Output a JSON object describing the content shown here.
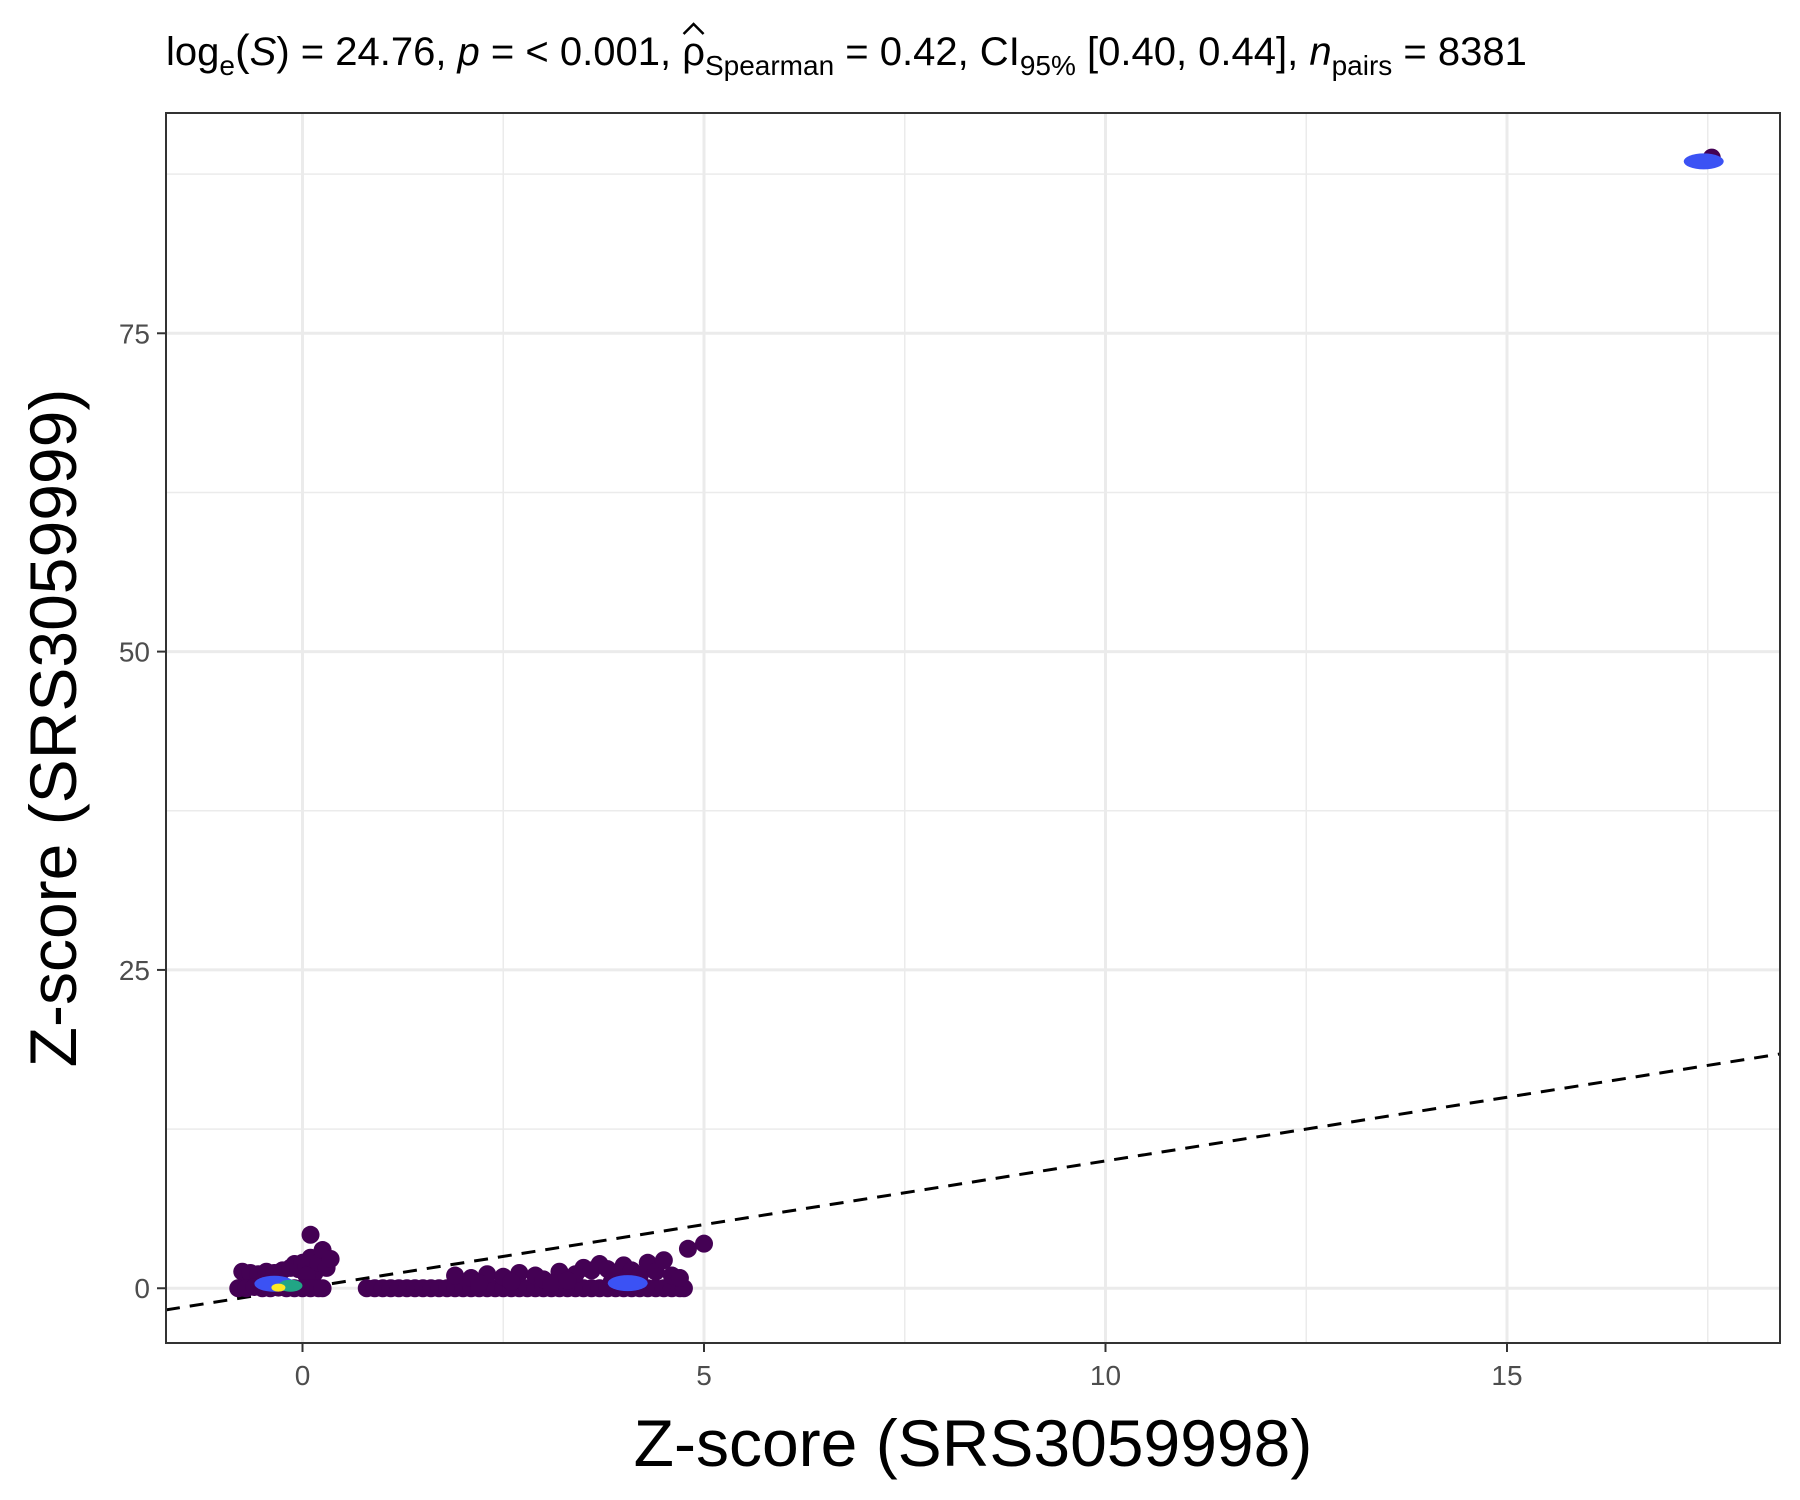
{
  "chart_data": {
    "type": "scatter",
    "subtitle": {
      "loge_S": "log",
      "loge_S_sub": "e",
      "S_symbol": "S",
      "S_value": ") = 24.76, ",
      "p_symbol": "p",
      "p_value": " = < 0.001, ",
      "rho_symbol": "ρ",
      "rho_sub": "Spearman",
      "rho_value": " = 0.42, CI",
      "ci_sub": "95%",
      "ci_value": " [0.40, 0.44], ",
      "n_symbol": "n",
      "n_sub": "pairs",
      "n_value": " = 8381"
    },
    "xlabel": "Z-score (SRS3059998)",
    "ylabel": "Z-score (SRS3059999)",
    "xlim": [
      -1.7,
      18.4
    ],
    "ylim": [
      -4.3,
      92.3
    ],
    "x_ticks": [
      0,
      5,
      10,
      15
    ],
    "x_tick_labels": [
      "0",
      "5",
      "10",
      "15"
    ],
    "y_ticks": [
      0,
      25,
      50,
      75
    ],
    "y_tick_labels": [
      "0",
      "25",
      "50",
      "75"
    ],
    "grid": true,
    "reference_line": {
      "style": "dashed",
      "slope": 1,
      "intercept": 0
    },
    "colors": {
      "low_density": "#440154",
      "mid_density": "#3b52f4",
      "high_density": "#21a585",
      "peak_density": "#fde725",
      "line": "#000000"
    },
    "points": [
      [
        17.55,
        88.8
      ],
      [
        -0.75,
        1.3
      ],
      [
        -0.65,
        1.2
      ],
      [
        -0.55,
        1.1
      ],
      [
        -0.45,
        1.3
      ],
      [
        -0.35,
        1.2
      ],
      [
        -0.25,
        1.4
      ],
      [
        -0.15,
        1.6
      ],
      [
        -0.1,
        1.9
      ],
      [
        -0.05,
        1.5
      ],
      [
        0.0,
        2.0
      ],
      [
        0.05,
        1.7
      ],
      [
        0.1,
        4.2
      ],
      [
        0.1,
        2.4
      ],
      [
        0.15,
        1.2
      ],
      [
        0.2,
        2.0
      ],
      [
        0.25,
        3.0
      ],
      [
        0.3,
        1.6
      ],
      [
        0.35,
        2.3
      ],
      [
        0.05,
        1.0
      ],
      [
        -0.8,
        0.0
      ],
      [
        -0.7,
        0.0
      ],
      [
        -0.6,
        0.1
      ],
      [
        -0.5,
        0.0
      ],
      [
        -0.4,
        0.0
      ],
      [
        -0.3,
        0.05
      ],
      [
        -0.2,
        0.0
      ],
      [
        -0.1,
        0.0
      ],
      [
        0.0,
        0.0
      ],
      [
        0.1,
        0.0
      ],
      [
        0.2,
        0.0
      ],
      [
        0.25,
        0.0
      ],
      [
        0.8,
        0.0
      ],
      [
        0.9,
        0.0
      ],
      [
        1.0,
        0.0
      ],
      [
        1.1,
        0.0
      ],
      [
        1.2,
        0.0
      ],
      [
        1.3,
        0.0
      ],
      [
        1.4,
        0.0
      ],
      [
        1.5,
        0.0
      ],
      [
        1.6,
        0.0
      ],
      [
        1.7,
        0.0
      ],
      [
        1.8,
        0.0
      ],
      [
        1.9,
        0.0
      ],
      [
        2.0,
        0.0
      ],
      [
        2.1,
        0.0
      ],
      [
        2.2,
        0.0
      ],
      [
        2.3,
        0.0
      ],
      [
        2.4,
        0.0
      ],
      [
        2.5,
        0.0
      ],
      [
        2.6,
        0.0
      ],
      [
        2.7,
        0.0
      ],
      [
        2.8,
        0.0
      ],
      [
        2.9,
        0.0
      ],
      [
        3.0,
        0.0
      ],
      [
        3.1,
        0.0
      ],
      [
        3.2,
        0.0
      ],
      [
        3.3,
        0.0
      ],
      [
        3.4,
        0.0
      ],
      [
        3.5,
        0.0
      ],
      [
        3.6,
        0.0
      ],
      [
        3.7,
        0.0
      ],
      [
        3.8,
        0.0
      ],
      [
        3.9,
        0.0
      ],
      [
        4.0,
        0.0
      ],
      [
        4.1,
        0.0
      ],
      [
        4.2,
        0.0
      ],
      [
        4.3,
        0.0
      ],
      [
        4.4,
        0.0
      ],
      [
        4.5,
        0.0
      ],
      [
        4.6,
        0.0
      ],
      [
        4.7,
        0.0
      ],
      [
        4.75,
        0.0
      ],
      [
        1.9,
        1.0
      ],
      [
        2.1,
        0.8
      ],
      [
        2.3,
        1.1
      ],
      [
        2.5,
        0.9
      ],
      [
        2.7,
        1.2
      ],
      [
        2.9,
        1.0
      ],
      [
        3.0,
        0.7
      ],
      [
        3.2,
        1.3
      ],
      [
        3.4,
        1.1
      ],
      [
        3.5,
        1.6
      ],
      [
        3.6,
        1.4
      ],
      [
        3.7,
        1.9
      ],
      [
        3.8,
        1.5
      ],
      [
        3.9,
        1.2
      ],
      [
        4.0,
        1.8
      ],
      [
        4.1,
        1.4
      ],
      [
        4.2,
        1.0
      ],
      [
        4.3,
        2.0
      ],
      [
        4.4,
        1.3
      ],
      [
        4.5,
        2.2
      ],
      [
        4.6,
        1.0
      ],
      [
        4.7,
        0.8
      ],
      [
        4.8,
        3.1
      ],
      [
        5.0,
        3.5
      ],
      [
        2.2,
        0.4
      ],
      [
        2.6,
        0.5
      ],
      [
        3.1,
        0.4
      ],
      [
        3.3,
        0.6
      ],
      [
        3.85,
        0.5
      ]
    ],
    "density_cores": [
      {
        "x": -0.35,
        "y": 0.35,
        "level": "mid"
      },
      {
        "x": -0.15,
        "y": 0.2,
        "level": "high"
      },
      {
        "x": -0.3,
        "y": 0.05,
        "level": "peak"
      },
      {
        "x": 4.05,
        "y": 0.4,
        "level": "mid"
      },
      {
        "x": 17.45,
        "y": 88.5,
        "level": "mid"
      }
    ]
  }
}
